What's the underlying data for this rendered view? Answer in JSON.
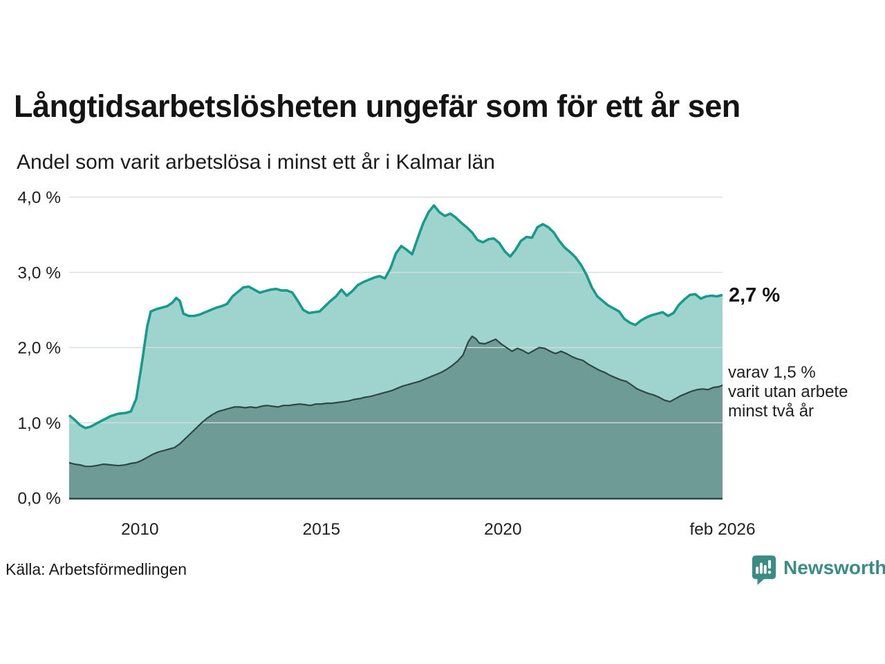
{
  "title": "Långtidsarbetslösheten ungefär som för ett år sen",
  "subtitle": "Andel som varit arbetslösa i minst ett år i Kalmar län",
  "source": "Källa: Arbetsförmedlingen",
  "branding": {
    "name": "Newsworthy",
    "color": "#3a8c85",
    "icon": "bar-chart-speech-bubble-icon"
  },
  "annotations": {
    "latest_total": "2,7 %",
    "two_year_note_lines": [
      "varav 1,5 %",
      "varit utan arbete",
      "minst två år"
    ]
  },
  "colors": {
    "total_line": "#179a8c",
    "total_fill": "#9ed4cd",
    "two_year_line": "#2e4744",
    "two_year_fill": "#6f9b96",
    "grid": "#d8dcdb",
    "axis_text": "#212121",
    "baseline": "#2e4744"
  },
  "chart_data": {
    "type": "area",
    "title": "Långtidsarbetslösheten ungefär som för ett år sen",
    "xlabel": "",
    "ylabel": "Andel som varit arbetslösa i minst ett år (%)",
    "x_domain": [
      2008.05,
      2026.05
    ],
    "ylim": [
      0,
      4
    ],
    "grid": true,
    "legend": "none",
    "y_ticks": [
      {
        "value": 0,
        "label": "0,0 %"
      },
      {
        "value": 1,
        "label": "1,0 %"
      },
      {
        "value": 2,
        "label": "2,0 %"
      },
      {
        "value": 3,
        "label": "3,0 %"
      },
      {
        "value": 4,
        "label": "4,0 %"
      }
    ],
    "x_ticks": [
      {
        "value": 2010,
        "label": "2010"
      },
      {
        "value": 2015,
        "label": "2015"
      },
      {
        "value": 2020,
        "label": "2020"
      },
      {
        "value": 2026.05,
        "label": "feb 2026"
      }
    ],
    "series": [
      {
        "name": "arbetslösa minst ett år",
        "latest_value": 2.7,
        "points": [
          [
            2008.05,
            1.1
          ],
          [
            2008.2,
            1.04
          ],
          [
            2008.35,
            0.97
          ],
          [
            2008.5,
            0.93
          ],
          [
            2008.65,
            0.95
          ],
          [
            2008.8,
            0.99
          ],
          [
            2009.0,
            1.04
          ],
          [
            2009.2,
            1.09
          ],
          [
            2009.4,
            1.12
          ],
          [
            2009.6,
            1.13
          ],
          [
            2009.75,
            1.15
          ],
          [
            2009.9,
            1.32
          ],
          [
            2010.05,
            1.78
          ],
          [
            2010.2,
            2.28
          ],
          [
            2010.3,
            2.48
          ],
          [
            2010.45,
            2.51
          ],
          [
            2010.6,
            2.53
          ],
          [
            2010.75,
            2.55
          ],
          [
            2010.9,
            2.6
          ],
          [
            2011.0,
            2.66
          ],
          [
            2011.1,
            2.62
          ],
          [
            2011.2,
            2.45
          ],
          [
            2011.35,
            2.42
          ],
          [
            2011.5,
            2.42
          ],
          [
            2011.65,
            2.44
          ],
          [
            2011.8,
            2.47
          ],
          [
            2011.95,
            2.5
          ],
          [
            2012.1,
            2.53
          ],
          [
            2012.25,
            2.55
          ],
          [
            2012.4,
            2.58
          ],
          [
            2012.55,
            2.68
          ],
          [
            2012.7,
            2.74
          ],
          [
            2012.85,
            2.8
          ],
          [
            2013.0,
            2.81
          ],
          [
            2013.15,
            2.77
          ],
          [
            2013.3,
            2.73
          ],
          [
            2013.45,
            2.75
          ],
          [
            2013.6,
            2.77
          ],
          [
            2013.75,
            2.78
          ],
          [
            2013.9,
            2.76
          ],
          [
            2014.05,
            2.76
          ],
          [
            2014.2,
            2.73
          ],
          [
            2014.35,
            2.62
          ],
          [
            2014.5,
            2.5
          ],
          [
            2014.65,
            2.46
          ],
          [
            2014.8,
            2.47
          ],
          [
            2014.95,
            2.48
          ],
          [
            2015.1,
            2.55
          ],
          [
            2015.25,
            2.62
          ],
          [
            2015.4,
            2.68
          ],
          [
            2015.55,
            2.77
          ],
          [
            2015.7,
            2.69
          ],
          [
            2015.85,
            2.75
          ],
          [
            2016.0,
            2.83
          ],
          [
            2016.15,
            2.87
          ],
          [
            2016.3,
            2.9
          ],
          [
            2016.45,
            2.93
          ],
          [
            2016.6,
            2.95
          ],
          [
            2016.75,
            2.92
          ],
          [
            2016.9,
            3.05
          ],
          [
            2017.05,
            3.25
          ],
          [
            2017.2,
            3.35
          ],
          [
            2017.35,
            3.3
          ],
          [
            2017.5,
            3.24
          ],
          [
            2017.65,
            3.45
          ],
          [
            2017.8,
            3.65
          ],
          [
            2017.95,
            3.8
          ],
          [
            2018.1,
            3.89
          ],
          [
            2018.25,
            3.8
          ],
          [
            2018.4,
            3.75
          ],
          [
            2018.55,
            3.78
          ],
          [
            2018.7,
            3.73
          ],
          [
            2018.85,
            3.66
          ],
          [
            2019.0,
            3.6
          ],
          [
            2019.15,
            3.53
          ],
          [
            2019.3,
            3.43
          ],
          [
            2019.45,
            3.4
          ],
          [
            2019.6,
            3.44
          ],
          [
            2019.75,
            3.45
          ],
          [
            2019.9,
            3.39
          ],
          [
            2020.05,
            3.28
          ],
          [
            2020.2,
            3.21
          ],
          [
            2020.35,
            3.3
          ],
          [
            2020.5,
            3.42
          ],
          [
            2020.65,
            3.47
          ],
          [
            2020.8,
            3.46
          ],
          [
            2020.95,
            3.6
          ],
          [
            2021.1,
            3.64
          ],
          [
            2021.25,
            3.6
          ],
          [
            2021.4,
            3.53
          ],
          [
            2021.55,
            3.42
          ],
          [
            2021.7,
            3.33
          ],
          [
            2021.85,
            3.27
          ],
          [
            2022.0,
            3.2
          ],
          [
            2022.15,
            3.1
          ],
          [
            2022.3,
            2.97
          ],
          [
            2022.45,
            2.8
          ],
          [
            2022.6,
            2.68
          ],
          [
            2022.75,
            2.62
          ],
          [
            2022.9,
            2.56
          ],
          [
            2023.05,
            2.52
          ],
          [
            2023.2,
            2.48
          ],
          [
            2023.35,
            2.38
          ],
          [
            2023.5,
            2.33
          ],
          [
            2023.65,
            2.3
          ],
          [
            2023.8,
            2.36
          ],
          [
            2023.95,
            2.4
          ],
          [
            2024.1,
            2.43
          ],
          [
            2024.25,
            2.45
          ],
          [
            2024.4,
            2.47
          ],
          [
            2024.55,
            2.42
          ],
          [
            2024.7,
            2.46
          ],
          [
            2024.85,
            2.57
          ],
          [
            2025.0,
            2.64
          ],
          [
            2025.15,
            2.7
          ],
          [
            2025.3,
            2.71
          ],
          [
            2025.45,
            2.65
          ],
          [
            2025.6,
            2.68
          ],
          [
            2025.75,
            2.69
          ],
          [
            2025.9,
            2.68
          ],
          [
            2026.05,
            2.7
          ]
        ]
      },
      {
        "name": "utan arbete minst två år",
        "latest_value": 1.5,
        "points": [
          [
            2008.05,
            0.47
          ],
          [
            2008.2,
            0.45
          ],
          [
            2008.35,
            0.44
          ],
          [
            2008.5,
            0.42
          ],
          [
            2008.65,
            0.42
          ],
          [
            2008.8,
            0.43
          ],
          [
            2009.0,
            0.45
          ],
          [
            2009.2,
            0.44
          ],
          [
            2009.4,
            0.43
          ],
          [
            2009.6,
            0.44
          ],
          [
            2009.75,
            0.46
          ],
          [
            2009.9,
            0.47
          ],
          [
            2010.05,
            0.5
          ],
          [
            2010.2,
            0.54
          ],
          [
            2010.35,
            0.58
          ],
          [
            2010.5,
            0.61
          ],
          [
            2010.65,
            0.63
          ],
          [
            2010.8,
            0.65
          ],
          [
            2010.95,
            0.67
          ],
          [
            2011.1,
            0.72
          ],
          [
            2011.25,
            0.79
          ],
          [
            2011.4,
            0.86
          ],
          [
            2011.55,
            0.93
          ],
          [
            2011.7,
            1.0
          ],
          [
            2011.85,
            1.06
          ],
          [
            2012.0,
            1.11
          ],
          [
            2012.15,
            1.15
          ],
          [
            2012.3,
            1.17
          ],
          [
            2012.45,
            1.19
          ],
          [
            2012.6,
            1.21
          ],
          [
            2012.75,
            1.21
          ],
          [
            2012.9,
            1.2
          ],
          [
            2013.05,
            1.21
          ],
          [
            2013.2,
            1.2
          ],
          [
            2013.35,
            1.22
          ],
          [
            2013.5,
            1.23
          ],
          [
            2013.65,
            1.22
          ],
          [
            2013.8,
            1.21
          ],
          [
            2013.95,
            1.23
          ],
          [
            2014.1,
            1.23
          ],
          [
            2014.25,
            1.24
          ],
          [
            2014.4,
            1.25
          ],
          [
            2014.55,
            1.24
          ],
          [
            2014.7,
            1.23
          ],
          [
            2014.85,
            1.25
          ],
          [
            2015.0,
            1.25
          ],
          [
            2015.15,
            1.26
          ],
          [
            2015.3,
            1.26
          ],
          [
            2015.45,
            1.27
          ],
          [
            2015.6,
            1.28
          ],
          [
            2015.75,
            1.29
          ],
          [
            2015.9,
            1.31
          ],
          [
            2016.05,
            1.32
          ],
          [
            2016.2,
            1.34
          ],
          [
            2016.35,
            1.35
          ],
          [
            2016.5,
            1.37
          ],
          [
            2016.65,
            1.39
          ],
          [
            2016.8,
            1.41
          ],
          [
            2016.95,
            1.43
          ],
          [
            2017.1,
            1.46
          ],
          [
            2017.25,
            1.49
          ],
          [
            2017.4,
            1.51
          ],
          [
            2017.55,
            1.53
          ],
          [
            2017.7,
            1.55
          ],
          [
            2017.85,
            1.58
          ],
          [
            2018.0,
            1.61
          ],
          [
            2018.15,
            1.64
          ],
          [
            2018.3,
            1.67
          ],
          [
            2018.45,
            1.71
          ],
          [
            2018.6,
            1.76
          ],
          [
            2018.75,
            1.82
          ],
          [
            2018.9,
            1.9
          ],
          [
            2019.05,
            2.08
          ],
          [
            2019.15,
            2.15
          ],
          [
            2019.25,
            2.12
          ],
          [
            2019.35,
            2.06
          ],
          [
            2019.5,
            2.05
          ],
          [
            2019.65,
            2.08
          ],
          [
            2019.8,
            2.11
          ],
          [
            2019.95,
            2.05
          ],
          [
            2020.1,
            2.0
          ],
          [
            2020.25,
            1.95
          ],
          [
            2020.4,
            1.99
          ],
          [
            2020.55,
            1.96
          ],
          [
            2020.7,
            1.92
          ],
          [
            2020.85,
            1.96
          ],
          [
            2021.0,
            2.0
          ],
          [
            2021.15,
            1.99
          ],
          [
            2021.3,
            1.95
          ],
          [
            2021.45,
            1.92
          ],
          [
            2021.6,
            1.95
          ],
          [
            2021.75,
            1.92
          ],
          [
            2021.9,
            1.88
          ],
          [
            2022.05,
            1.85
          ],
          [
            2022.2,
            1.83
          ],
          [
            2022.35,
            1.78
          ],
          [
            2022.5,
            1.74
          ],
          [
            2022.65,
            1.7
          ],
          [
            2022.8,
            1.67
          ],
          [
            2022.95,
            1.63
          ],
          [
            2023.1,
            1.6
          ],
          [
            2023.25,
            1.57
          ],
          [
            2023.4,
            1.55
          ],
          [
            2023.55,
            1.5
          ],
          [
            2023.7,
            1.45
          ],
          [
            2023.85,
            1.42
          ],
          [
            2024.0,
            1.39
          ],
          [
            2024.15,
            1.37
          ],
          [
            2024.3,
            1.34
          ],
          [
            2024.45,
            1.3
          ],
          [
            2024.6,
            1.28
          ],
          [
            2024.75,
            1.32
          ],
          [
            2024.9,
            1.36
          ],
          [
            2025.05,
            1.39
          ],
          [
            2025.2,
            1.42
          ],
          [
            2025.35,
            1.44
          ],
          [
            2025.5,
            1.45
          ],
          [
            2025.65,
            1.44
          ],
          [
            2025.8,
            1.47
          ],
          [
            2025.95,
            1.48
          ],
          [
            2026.05,
            1.5
          ]
        ]
      }
    ]
  }
}
